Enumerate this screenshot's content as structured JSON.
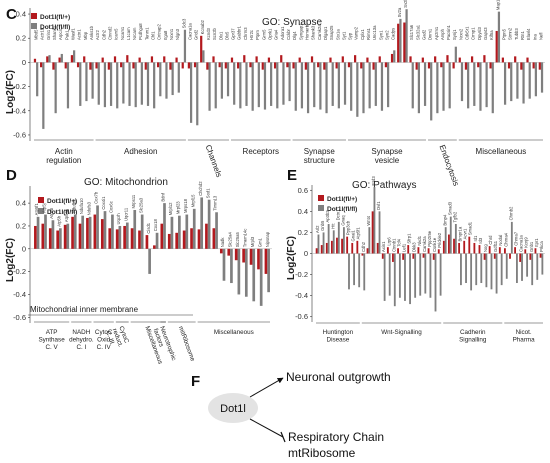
{
  "colors": {
    "wt": "#b3191e",
    "ko": "#7f7f7f",
    "axis": "#333333",
    "node": "#e3e3e3"
  },
  "legend": {
    "wt": "Dot1l(fl/+)",
    "ko": "Dot1l(fl/fl)"
  },
  "ylabel": "Log2(FC)",
  "panels": {
    "C": {
      "letter": "C",
      "title": "GO: Synapse",
      "ticks": [
        "0.4",
        "0.2",
        "0",
        "-0.2",
        "-0.4",
        "-0.6"
      ],
      "genes": [
        "Mbd5",
        "Actr1b",
        "Grin1",
        "Shank1",
        "Arpc4",
        "Pak1",
        "Wasf1",
        "Actn1",
        "Mbp",
        "Anks1b",
        "Actr2",
        "Cdh2",
        "Ctnnd2",
        "Icam5",
        "Ncam1",
        "L1cam",
        "Nrcam",
        "Pcdhga8",
        "Tenm1",
        "Chl1",
        "Cntnap2",
        "Itga8",
        "Nrxn1",
        "Nlgn3",
        "Sdc3",
        "Cacna1a",
        "Grid2",
        "Kcnab2",
        "Kcnd3",
        "Scn2b",
        "Dlx1",
        "Dlx5",
        "Gpr37",
        "Gabbr1",
        "Chrm3",
        "Htr2c",
        "Ptprn",
        "Grm5",
        "Oprk1",
        "Gria4",
        "Adora1",
        "Cckbr",
        "Dlg4",
        "Syngap1",
        "Homer1",
        "Shank3",
        "Camk2a",
        "Dlgap1",
        "Snap25",
        "Stx1a",
        "Syt1",
        "Syp",
        "Vamp2",
        "Cplx1",
        "Rims1",
        "Unc13a",
        "Syn1",
        "Syn2",
        "Cadps",
        "Sv2a",
        "Sv2b",
        "Slc17a6",
        "Slc32a1",
        "Gad2",
        "Dnm1",
        "Ap2m1",
        "Amph",
        "Pacsin1",
        "Synj1",
        "Nrxn2",
        "Cdk5r1",
        "Crmp1",
        "Dpysl3",
        "Gap43",
        "Kif5a",
        "Map1b",
        "Ptpn5",
        "Stmn2",
        "Tubb3",
        "Rtn1",
        "Elavl4",
        "Ina",
        "Nefl"
      ],
      "values_wt": [
        0.03,
        -0.04,
        0.05,
        -0.06,
        0.04,
        -0.05,
        0.06,
        -0.04,
        0.05,
        -0.06,
        -0.05,
        0.04,
        -0.06,
        0.05,
        -0.04,
        0.06,
        -0.05,
        0.04,
        -0.06,
        0.05,
        -0.04,
        0.05,
        -0.06,
        0.04,
        -0.05,
        -0.05,
        -0.04,
        0.22,
        -0.06,
        0.05,
        -0.04,
        -0.05,
        0.04,
        -0.05,
        0.06,
        -0.04,
        0.05,
        -0.06,
        0.04,
        -0.05,
        0.06,
        -0.04,
        -0.05,
        0.04,
        -0.06,
        0.05,
        -0.04,
        -0.06,
        0.04,
        -0.05,
        0.05,
        -0.04,
        0.06,
        -0.05,
        0.04,
        -0.06,
        0.05,
        -0.04,
        0.07,
        0.32,
        0.33,
        0.05,
        -0.06,
        0.04,
        -0.05,
        0.05,
        -0.04,
        0.06,
        -0.05,
        0.04,
        -0.06,
        0.05,
        -0.04,
        0.06,
        -0.05,
        0.26,
        0.04,
        -0.05,
        0.05,
        -0.06,
        0.04,
        -0.05,
        -0.06
      ],
      "values_ko": [
        -0.28,
        -0.55,
        0.06,
        -0.42,
        0.07,
        -0.38,
        0.1,
        -0.36,
        -0.32,
        -0.3,
        -0.35,
        -0.37,
        -0.36,
        -0.38,
        -0.34,
        -0.36,
        -0.37,
        -0.35,
        -0.36,
        -0.38,
        -0.28,
        -0.3,
        -0.27,
        -0.25,
        0.27,
        -0.5,
        -0.52,
        0.1,
        -0.4,
        -0.38,
        -0.3,
        -0.28,
        -0.35,
        -0.38,
        -0.36,
        -0.4,
        -0.37,
        -0.39,
        -0.36,
        -0.38,
        -0.35,
        -0.32,
        -0.4,
        -0.38,
        -0.42,
        -0.37,
        -0.39,
        -0.42,
        -0.36,
        -0.38,
        -0.35,
        -0.4,
        -0.45,
        -0.42,
        -0.38,
        -0.36,
        -0.4,
        -0.37,
        0.1,
        0.36,
        0.44,
        -0.38,
        -0.42,
        -0.36,
        -0.48,
        -0.42,
        -0.4,
        -0.38,
        0.13,
        -0.32,
        -0.38,
        -0.36,
        -0.4,
        -0.37,
        -0.42,
        0.42,
        -0.35,
        -0.32,
        -0.3,
        -0.34,
        -0.3,
        -0.28,
        -0.25
      ],
      "groups": [
        {
          "label": "Actin\nregulation",
          "start": 0,
          "end": 9
        },
        {
          "label": "Adhesion",
          "start": 10,
          "end": 24
        },
        {
          "label": "Channels",
          "start": 25,
          "end": 31,
          "rotate": true
        },
        {
          "label": "Receptors",
          "start": 32,
          "end": 41
        },
        {
          "label": "Synapse\nstructure",
          "start": 42,
          "end": 50
        },
        {
          "label": "Synapse\nvesicle",
          "start": 51,
          "end": 63
        },
        {
          "label": "Endocytosis",
          "start": 64,
          "end": 68,
          "rotate": true
        },
        {
          "label": "Miscellaneous",
          "start": 69,
          "end": 82
        }
      ]
    },
    "D": {
      "letter": "D",
      "title": "GO: Mitochondrion",
      "ticks": [
        "0.4",
        "0.2",
        "0",
        "-0.2",
        "-0.4",
        "-0.6"
      ],
      "inner_membrane_label": "Mitochondrial inner membrane",
      "genes": [
        "Atp5f1",
        "Atp5j",
        "Atp5b",
        "Atp5h",
        "Atp5a1",
        "Ndufb9",
        "Ndufa10",
        "Ndufs3",
        "Cox7b",
        "Cox4i1",
        "Cox6c",
        "Uqcrh",
        "Uqcr11",
        "Mrps11",
        "Slc25a3",
        "Cisd1",
        "Cox18",
        "Bdnf",
        "Mrpl12",
        "Mrpl23",
        "Mrps18",
        "Mrpl15",
        "Chchd2",
        "Sod1",
        "Timm13",
        "Nadk",
        "Slc25a4",
        "Slc25a5",
        "Tmem14c",
        "Mrpl3",
        "Gm1",
        "Nipsnap"
      ],
      "values_wt": [
        0.2,
        0.22,
        0.18,
        0.16,
        0.21,
        0.28,
        0.22,
        0.27,
        0.3,
        0.26,
        0.18,
        0.17,
        0.2,
        0.18,
        0.16,
        0.12,
        0.03,
        0.22,
        0.13,
        0.14,
        0.16,
        0.18,
        0.17,
        0.22,
        0.18,
        -0.04,
        -0.06,
        -0.1,
        -0.12,
        -0.14,
        -0.18,
        -0.22
      ],
      "values_ko": [
        0.28,
        0.3,
        0.25,
        0.18,
        0.22,
        0.3,
        0.29,
        0.28,
        0.38,
        0.33,
        0.3,
        0.2,
        0.23,
        0.34,
        0.3,
        -0.22,
        0.14,
        0.4,
        0.28,
        0.29,
        0.3,
        0.35,
        0.45,
        0.43,
        0.32,
        -0.28,
        -0.3,
        -0.4,
        -0.42,
        -0.46,
        -0.5,
        -0.38
      ],
      "groups": [
        {
          "label": "ATP\nSynthase\nC. V",
          "start": 0,
          "end": 4
        },
        {
          "label": "NADH\ndehydro.\nC. I",
          "start": 5,
          "end": 7
        },
        {
          "label": "CytoC\nOxid\nC. IV",
          "start": 8,
          "end": 10
        },
        {
          "label": "CytoC\nreduct.\nC. III",
          "start": 11,
          "end": 12,
          "rotate": true
        },
        {
          "label": "Miscellaneous",
          "start": 13,
          "end": 17,
          "rotate": true
        },
        {
          "label": "Neurotrophic\nfactors",
          "start": 17,
          "end": 17,
          "rotate": true
        },
        {
          "label": "mitRibosome",
          "start": 18,
          "end": 21,
          "rotate": true
        },
        {
          "label": "Miscellaneous",
          "start": 22,
          "end": 31
        }
      ]
    },
    "E": {
      "letter": "E",
      "title": "GO: Pathways",
      "ticks": [
        "0.6",
        "0.4",
        "0.2",
        "0",
        "-0.2",
        "-0.4",
        "-0.6"
      ],
      "genes": [
        "Arl2",
        "Gnb5",
        "Ap3b2",
        "Htt",
        "Dctn1",
        "Gnaq",
        "Ppp3cb",
        "Gnai1",
        "Atp5f1",
        "Cdh2",
        "Wnt4",
        "Fzd3",
        "Dvl1",
        "Axin1",
        "Lrp6",
        "Ctnnb1",
        "Tcf4",
        "Lef1",
        "Sfrp1",
        "Dkk3",
        "Nkd1",
        "Camk2a",
        "Ppp2r5e",
        "Csnk1e",
        "Prickle2",
        "Bmp4",
        "Smad3",
        "Tgfb2",
        "Bmpr1a",
        "Acvr1",
        "Smad1",
        "Id1",
        "Id3",
        "Nog",
        "Chrd",
        "Gdf11",
        "Nodal",
        "Chrna4",
        "Chrnb2",
        "Chrna7",
        "Cacna1a",
        "Kcnj9",
        "Gnb1",
        "Itpr1",
        "Prkca"
      ],
      "values_wt": [
        0.05,
        0.08,
        0.1,
        0.12,
        0.15,
        0.14,
        0.16,
        0.1,
        0.12,
        -0.02,
        0.05,
        0.4,
        0.1,
        -0.05,
        0.06,
        -0.08,
        0.05,
        -0.06,
        0.08,
        -0.05,
        0.06,
        -0.04,
        0.05,
        -0.06,
        0.04,
        0.12,
        0.18,
        0.14,
        0.1,
        0.12,
        0.16,
        0.1,
        0.08,
        -0.06,
        0.07,
        -0.05,
        0.06,
        0.05,
        -0.05,
        0.06,
        -0.08,
        0.04,
        -0.06,
        0.05,
        -0.04
      ],
      "values_ko": [
        0.18,
        0.2,
        0.28,
        0.22,
        0.3,
        0.25,
        -0.34,
        -0.3,
        -0.32,
        -0.35,
        0.25,
        0.63,
        0.4,
        -0.45,
        -0.4,
        -0.5,
        -0.42,
        -0.45,
        -0.48,
        -0.42,
        -0.4,
        -0.38,
        -0.42,
        -0.55,
        -0.4,
        0.25,
        0.35,
        0.28,
        -0.3,
        -0.28,
        -0.35,
        -0.3,
        -0.28,
        -0.32,
        -0.34,
        -0.38,
        -0.3,
        -0.24,
        0.3,
        -0.28,
        -0.26,
        -0.22,
        -0.3,
        -0.25,
        -0.2
      ],
      "groups": [
        {
          "label": "Huntington\nDisease",
          "start": 0,
          "end": 8
        },
        {
          "label": "Wnt-Signalling",
          "start": 9,
          "end": 24
        },
        {
          "label": "Cadherin\nSignalling",
          "start": 25,
          "end": 36
        },
        {
          "label": "Nicot.\nPharma",
          "start": 37,
          "end": 44
        }
      ]
    }
  },
  "diagram": {
    "letter": "F",
    "node": "Dot1l",
    "up": "Neuronal outgrowth",
    "down_line1": "Respiratory Chain",
    "down_line2": "mtRibosome"
  }
}
